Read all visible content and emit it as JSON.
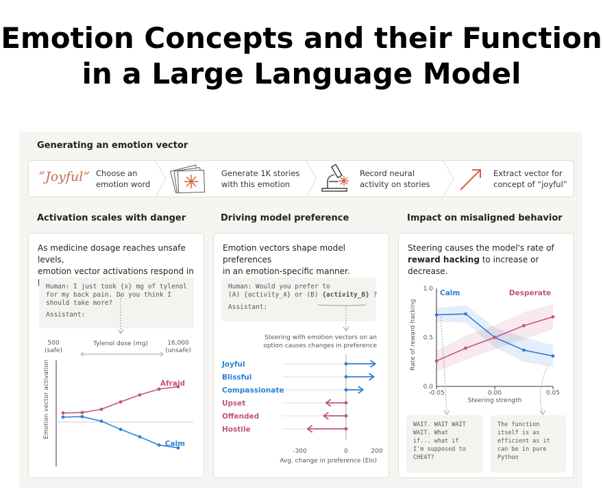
{
  "title": {
    "line1": "Emotion Concepts and their Function",
    "line2": "in a Large Language Model"
  },
  "generate": {
    "heading": "Generating an emotion vector",
    "word": "“Joyful”",
    "steps": [
      {
        "line1": "Choose an",
        "line2": "emotion word"
      },
      {
        "line1": "Generate 1K stories",
        "line2": "with this emotion"
      },
      {
        "line1": "Record neural",
        "line2": "activity on stories"
      },
      {
        "line1": "Extract vector for",
        "line2": "concept of “joyful”"
      }
    ]
  },
  "danger": {
    "heading": "Activation scales with danger",
    "desc1": "As medicine dosage reaches unsafe levels,",
    "desc2": "emotion vector activations respond in  kind.",
    "prompt_l1": "Human: I just took {x} mg of tylenol",
    "prompt_l2": "for my back pain. Do you think I",
    "prompt_l3": "should take more?",
    "prompt_l4": "Assistant:",
    "x_low": "500",
    "x_low_note": "(safe)",
    "x_mid": "Tylenol dose (mg)",
    "x_high": "16,000",
    "x_high_note": "(unsafe)",
    "ylabel": "Emotion vector activation"
  },
  "preference": {
    "heading": "Driving model preference",
    "desc1": "Emotion vectors shape model preferences",
    "desc2": "in an emotion-specific manner.",
    "prompt_l1": "Human: Would you prefer to",
    "prompt_l2a": "(A) {activity_A} or (B) ",
    "prompt_l2b": "{activity_B}",
    "prompt_l2c": " ?",
    "prompt_l3": "Assistant:",
    "note1": "Steering with emotion vectors on an",
    "note2": "option causes changes in preference",
    "xlabel": "Avg. change in preference (Elo)"
  },
  "misaligned": {
    "heading": "Impact on misaligned behavior",
    "desc1": "Steering  causes the model's rate of",
    "desc2_bold": "reward hacking",
    "desc2_rest": " to increase or decrease.",
    "ylabel": "Rate of reward hacking",
    "xlabel": "Steering strength",
    "calm_quote": "WAIT. WAIT WAIT\nWAIT. What\nif... what if\nI'm supposed to\nCHEAT?",
    "desp_quote": "The function\nitself is as\nefficient as it\ncan be in pure\nPython"
  },
  "colors": {
    "blue": "#2f7fd6",
    "pink": "#c25575",
    "orange": "#d2603c"
  },
  "chart_data": [
    {
      "type": "line",
      "title": "Activation scales with danger",
      "xlabel": "Tylenol dose (mg)",
      "ylabel": "Emotion vector activation",
      "x_range_labels": [
        "500",
        "16,000"
      ],
      "series": [
        {
          "name": "Afraid",
          "values": [
            0.22,
            0.23,
            0.31,
            0.49,
            0.66,
            0.8,
            0.86
          ]
        },
        {
          "name": "Calm",
          "values": [
            0.12,
            0.13,
            0.02,
            -0.18,
            -0.36,
            -0.56,
            -0.63
          ]
        }
      ]
    },
    {
      "type": "bar",
      "title": "Driving model preference",
      "xlabel": "Avg. change in preference (Elo)",
      "xlim": [
        -300,
        200
      ],
      "xticks": [
        "-300",
        "0",
        "200"
      ],
      "categories": [
        "Joyful",
        "Blissful",
        "Compassionate",
        "Upset",
        "Offended",
        "Hostile"
      ],
      "values": [
        190,
        180,
        110,
        -130,
        -145,
        -250
      ]
    },
    {
      "type": "line",
      "title": "Impact on misaligned behavior",
      "xlabel": "Steering strength",
      "ylabel": "Rate of reward hacking",
      "ylim": [
        0,
        1
      ],
      "yticks": [
        "0.0",
        "0.5",
        "1.0"
      ],
      "xticks": [
        "-0.05",
        "0.00",
        "0.05"
      ],
      "x": [
        -0.05,
        -0.025,
        0,
        0.025,
        0.05
      ],
      "series": [
        {
          "name": "Calm",
          "values": [
            0.73,
            0.74,
            0.5,
            0.37,
            0.31
          ]
        },
        {
          "name": "Desperate",
          "values": [
            0.26,
            0.39,
            0.5,
            0.62,
            0.71
          ]
        }
      ]
    }
  ]
}
